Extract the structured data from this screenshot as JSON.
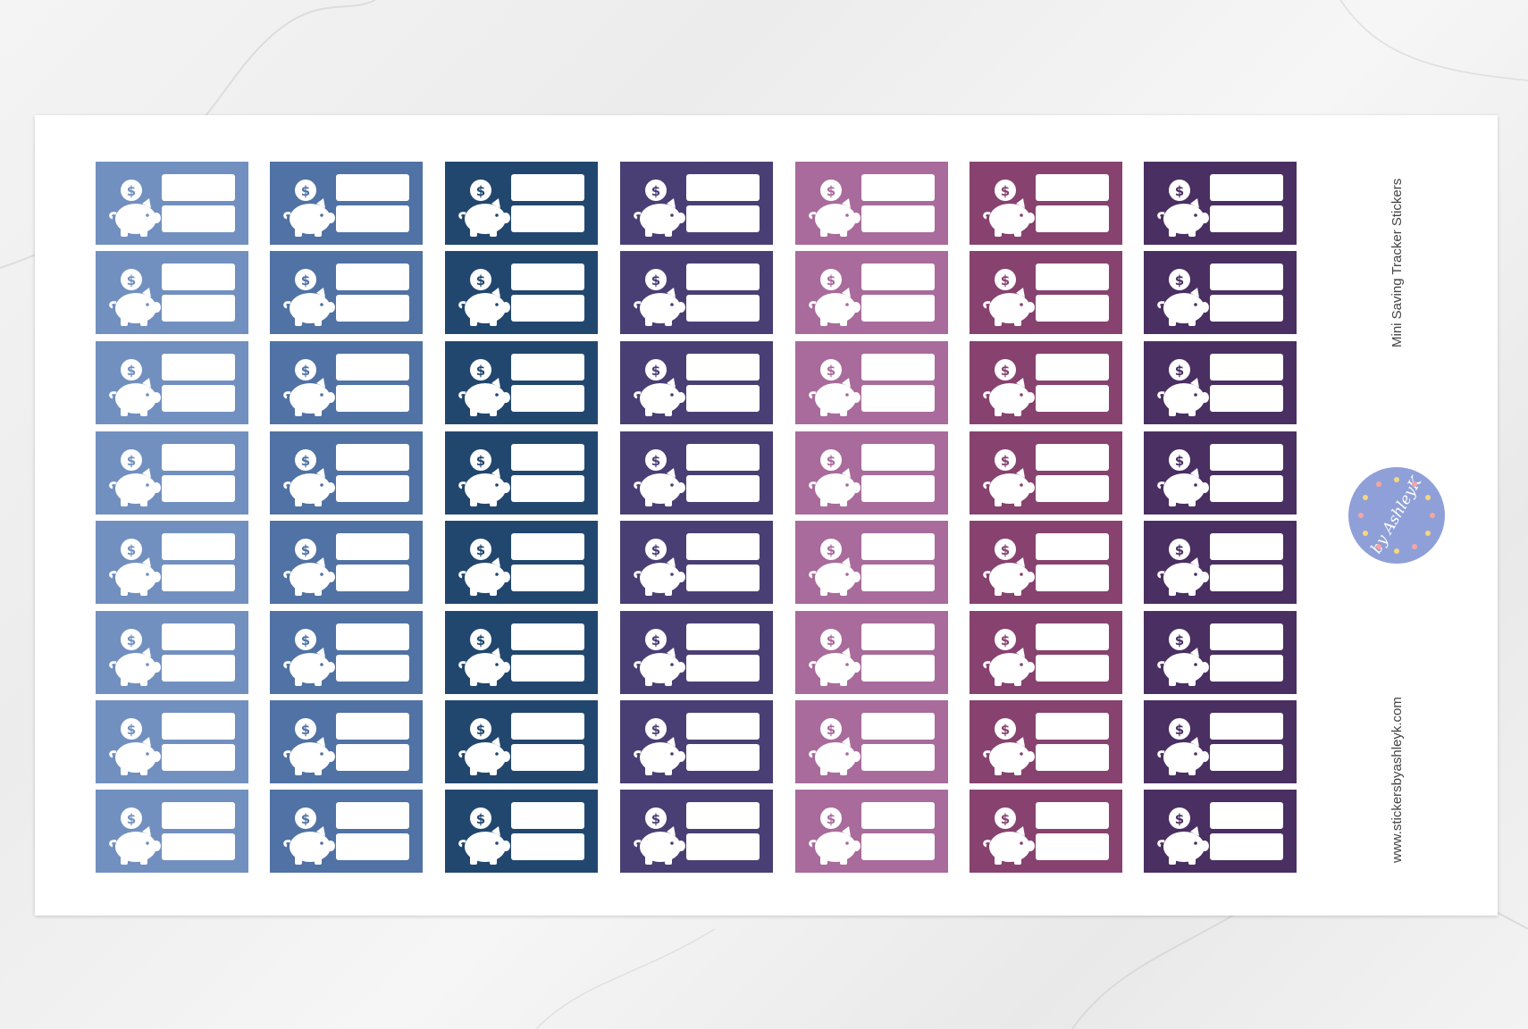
{
  "sheet": {
    "title": "Mini Saving Tracker  Stickers",
    "url": "www.stickersbyashleyk.com",
    "logo": {
      "text": "by AshleyK",
      "color": "#8fa0d8",
      "heart_colors": [
        "#f4a6a0",
        "#f6d77a"
      ]
    }
  },
  "stickers": {
    "rows": 8,
    "icon": "piggy-bank-coin-dollar-icon",
    "coin_symbol": "$",
    "columns": [
      {
        "color": "#7190c0"
      },
      {
        "color": "#5072a4"
      },
      {
        "color": "#22476f"
      },
      {
        "color": "#4a3f74"
      },
      {
        "color": "#a86b9b"
      },
      {
        "color": "#87426f"
      },
      {
        "color": "#4a2f62"
      }
    ]
  }
}
